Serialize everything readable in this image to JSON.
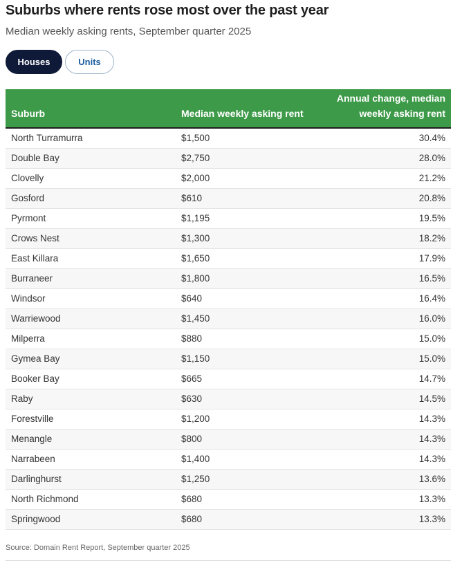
{
  "title": "Suburbs where rents rose most over the past year",
  "subtitle": "Median weekly asking rents, September quarter 2025",
  "toggle": {
    "houses_label": "Houses",
    "units_label": "Units",
    "selected": "Houses"
  },
  "colors": {
    "header_bg": "#3d9a48",
    "active_pill": "#0e1a38",
    "inactive_pill_text": "#1f5fa0"
  },
  "chart_data": {
    "type": "table",
    "title": "Suburbs where rents rose most over the past year",
    "subtitle": "Median weekly asking rents, September quarter 2025",
    "columns": [
      "Suburb",
      "Median weekly asking rent",
      "Annual change, median weekly asking rent"
    ],
    "rows": [
      [
        "North Turramurra",
        "$1,500",
        "30.4%"
      ],
      [
        "Double Bay",
        "$2,750",
        "28.0%"
      ],
      [
        "Clovelly",
        "$2,000",
        "21.2%"
      ],
      [
        "Gosford",
        "$610",
        "20.8%"
      ],
      [
        "Pyrmont",
        "$1,195",
        "19.5%"
      ],
      [
        "Crows Nest",
        "$1,300",
        "18.2%"
      ],
      [
        "East Killara",
        "$1,650",
        "17.9%"
      ],
      [
        "Burraneer",
        "$1,800",
        "16.5%"
      ],
      [
        "Windsor",
        "$640",
        "16.4%"
      ],
      [
        "Warriewood",
        "$1,450",
        "16.0%"
      ],
      [
        "Milperra",
        "$880",
        "15.0%"
      ],
      [
        "Gymea Bay",
        "$1,150",
        "15.0%"
      ],
      [
        "Booker Bay",
        "$665",
        "14.7%"
      ],
      [
        "Raby",
        "$630",
        "14.5%"
      ],
      [
        "Forestville",
        "$1,200",
        "14.3%"
      ],
      [
        "Menangle",
        "$800",
        "14.3%"
      ],
      [
        "Narrabeen",
        "$1,400",
        "14.3%"
      ],
      [
        "Darlinghurst",
        "$1,250",
        "13.6%"
      ],
      [
        "North Richmond",
        "$680",
        "13.3%"
      ],
      [
        "Springwood",
        "$680",
        "13.3%"
      ]
    ],
    "source": "Source: Domain Rent Report, September quarter 2025"
  }
}
